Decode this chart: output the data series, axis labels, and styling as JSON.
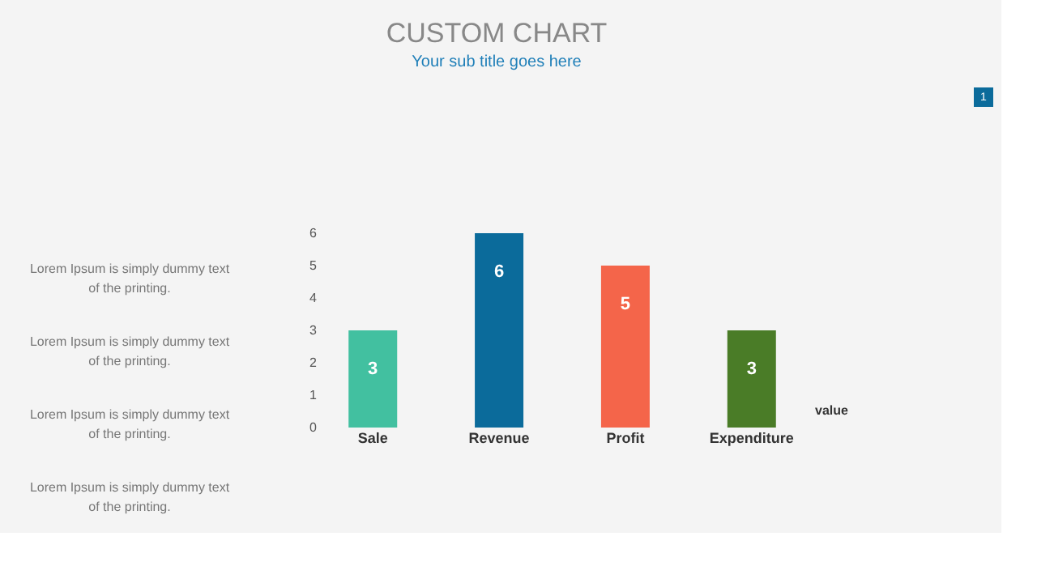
{
  "chart_data": {
    "type": "bar",
    "title": "CUSTOM CHART",
    "subtitle": "Your sub title goes here",
    "categories": [
      "Sale",
      "Revenue",
      "Profit",
      "Expenditure"
    ],
    "series": [
      {
        "name": "value",
        "colors": [
          "#42c0a0",
          "#0b6b9b",
          "#f4654a",
          "#4a7c27"
        ],
        "values": [
          3,
          6,
          5,
          3
        ]
      }
    ],
    "ylim": [
      0,
      6
    ],
    "yticks": [
      0,
      1,
      2,
      3,
      4,
      5,
      6
    ],
    "data_labels": true,
    "grid": false,
    "annotations": [
      "Lorem Ipsum is simply dummy text of the printing.",
      "Lorem Ipsum is simply dummy text of the printing.",
      "Lorem Ipsum is simply dummy text of the printing.",
      "Lorem Ipsum is simply dummy text of the printing.",
      "1"
    ]
  }
}
